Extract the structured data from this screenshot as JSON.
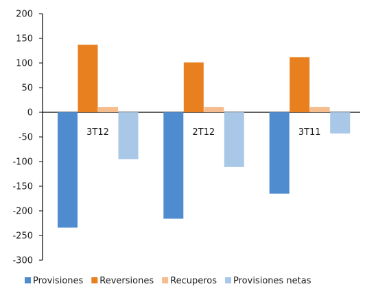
{
  "chart_data": {
    "type": "bar",
    "categories": [
      "3T12",
      "2T12",
      "3T11"
    ],
    "series": [
      {
        "name": "Provisiones",
        "values": [
          -234,
          -216,
          -165
        ],
        "color": "#4f8ccf"
      },
      {
        "name": "Reversiones",
        "values": [
          137,
          101,
          112
        ],
        "color": "#e8801f"
      },
      {
        "name": "Recuperos",
        "values": [
          11,
          11,
          11
        ],
        "color": "#f5bd8e"
      },
      {
        "name": "Provisiones netas",
        "values": [
          -95,
          -111,
          -43
        ],
        "color": "#a9c8e8"
      }
    ],
    "ylim": [
      -300,
      200
    ],
    "yticks": [
      200,
      150,
      100,
      50,
      0,
      -50,
      -100,
      -150,
      -200,
      -250,
      -300
    ],
    "ytick_labels": [
      "200",
      "150",
      "100",
      "50",
      "0",
      "-50",
      "-100",
      "-150",
      "-200",
      "-250",
      "-300"
    ],
    "grid": false,
    "legend_position": "bottom",
    "category_label_position": "below-zero-line"
  }
}
